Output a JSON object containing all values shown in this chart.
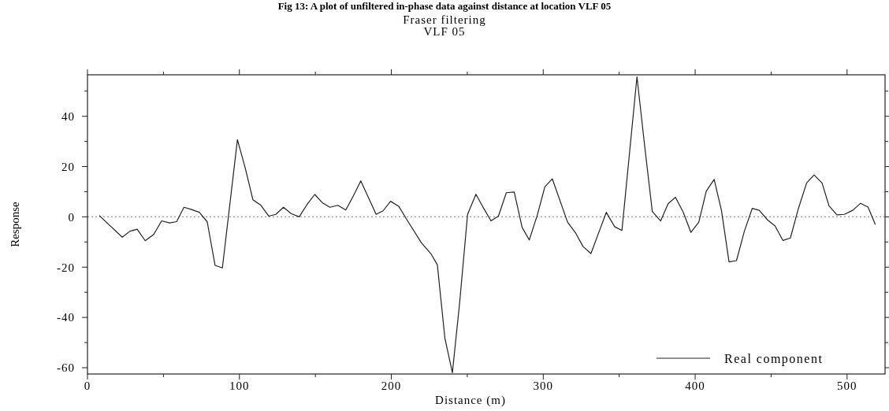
{
  "chart_data": {
    "type": "line",
    "title": "Fraser filtering",
    "subtitle": "VLF 05",
    "annotations": [
      "Fig 13: A plot of unfiltered in-phase data against distance at location VLF 05"
    ],
    "xlabel": "Distance (m)",
    "ylabel": "Response",
    "xlim": [
      0,
      525
    ],
    "xticks": [
      0,
      {
        "value": 50,
        "label": null
      },
      100,
      {
        "value": 150,
        "label": null
      },
      200,
      {
        "value": 250,
        "label": null
      },
      300,
      {
        "value": 350,
        "label": null
      },
      400,
      {
        "value": 450,
        "label": null
      },
      500
    ],
    "ylim": [
      -62.5,
      56.5
    ],
    "yticks": [
      {
        "value": -60,
        "label": "-60"
      },
      {
        "value": -50,
        "label": null
      },
      {
        "value": -40,
        "label": "-40"
      },
      {
        "value": -30,
        "label": null
      },
      {
        "value": -20,
        "label": "-20"
      },
      {
        "value": -10,
        "label": null
      },
      0,
      {
        "value": 10,
        "label": null
      },
      20,
      {
        "value": 30,
        "label": null
      },
      40,
      {
        "value": 50,
        "label": null
      }
    ],
    "legend": "bottom right",
    "marker": "none",
    "line_style": "solid",
    "ref_lines": [
      {
        "axis": "y",
        "value": 0,
        "color": "#999999",
        "line_style": "dotted"
      }
    ],
    "series": [
      {
        "name": "Real component",
        "color": "#222222",
        "x": [
          7.8,
          22.9,
          28,
          32.7,
          38,
          43.6,
          48.8,
          54,
          58.7,
          63.5,
          68.5,
          73.6,
          78.8,
          84,
          88.8,
          98.7,
          103.9,
          108.9,
          114,
          119.3,
          124,
          129,
          134,
          139.4,
          144.6,
          149.6,
          154.8,
          159.6,
          164.8,
          170,
          174.9,
          179.9,
          190,
          194.6,
          199.5,
          205,
          210.7,
          219.9,
          226,
          230.3,
          235.3,
          240.2,
          245,
          250.2,
          255.7,
          260.6,
          265.6,
          270.5,
          275.7,
          280.9,
          286.1,
          290.8,
          296,
          301.1,
          306,
          316,
          321.2,
          326.2,
          331.4,
          341.5,
          347,
          351.8,
          361.7,
          366.8,
          371.8,
          377.3,
          382.2,
          387,
          392.2,
          397.2,
          402.4,
          407.3,
          412.5,
          417.3,
          422.3,
          427.2,
          432.4,
          437.6,
          442.2,
          447.6,
          452.6,
          457.8,
          462.7,
          467.9,
          473.4,
          478.3,
          483.5,
          488.1,
          493.3,
          498.2,
          503.7,
          508.9,
          513.8,
          518.6
        ],
        "values": [
          0.5,
          -8.1,
          -5.7,
          -4.9,
          -9.5,
          -7.0,
          -1.6,
          -2.4,
          -1.9,
          3.8,
          2.9,
          1.8,
          -1.9,
          -19.3,
          -20.3,
          30.7,
          19.3,
          6.8,
          4.7,
          0.3,
          1.0,
          3.8,
          1.3,
          0,
          5.0,
          8.9,
          5.5,
          3.8,
          4.6,
          2.7,
          8.2,
          14.3,
          1.0,
          2.4,
          6.2,
          4.1,
          -1.6,
          -10.4,
          -14.6,
          -19.1,
          -48.4,
          -62,
          -34,
          1.0,
          9.0,
          3.6,
          -1.6,
          0.3,
          9.6,
          9.9,
          -4.2,
          -9.2,
          0.5,
          12,
          15.1,
          -2.1,
          -6.3,
          -11.8,
          -14.6,
          1.8,
          -3.9,
          -5.4,
          55.7,
          28,
          2.1,
          -1.6,
          5.2,
          7.8,
          1.8,
          -6.2,
          -2.1,
          10.2,
          14.9,
          2.6,
          -17.9,
          -17.4,
          -5.7,
          3.4,
          2.6,
          -1.2,
          -3.6,
          -9.4,
          -8.4,
          3.2,
          13.5,
          16.7,
          13.5,
          4.4,
          0.8,
          1.0,
          2.6,
          5.4,
          3.9,
          -3.1
        ]
      }
    ]
  }
}
